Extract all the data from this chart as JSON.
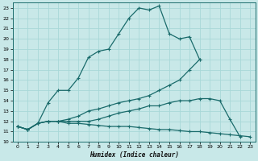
{
  "xlabel": "Humidex (Indice chaleur)",
  "bg_color": "#c8e8e8",
  "line_color": "#1a6b6b",
  "grid_color": "#a8d8d8",
  "xlim": [
    -0.5,
    23.5
  ],
  "ylim": [
    10,
    23.5
  ],
  "xticks": [
    0,
    1,
    2,
    3,
    4,
    5,
    6,
    7,
    8,
    9,
    10,
    11,
    12,
    13,
    14,
    15,
    16,
    17,
    18,
    19,
    20,
    21,
    22,
    23
  ],
  "yticks": [
    10,
    11,
    12,
    13,
    14,
    15,
    16,
    17,
    18,
    19,
    20,
    21,
    22,
    23
  ],
  "lines": [
    {
      "x": [
        0,
        1,
        2,
        3,
        4,
        5,
        6,
        7,
        8,
        9,
        10,
        11,
        12,
        13,
        14,
        15,
        16,
        17,
        18
      ],
      "y": [
        11.5,
        11.2,
        11.8,
        13.8,
        15.0,
        15.0,
        16.2,
        18.2,
        18.8,
        19.0,
        20.5,
        22.0,
        23.0,
        22.8,
        23.2,
        20.5,
        20.0,
        20.2,
        18.0
      ]
    },
    {
      "x": [
        0,
        1,
        2,
        3,
        4,
        5,
        6,
        7,
        8,
        9,
        10,
        11,
        12,
        13,
        14,
        15,
        16,
        17,
        18
      ],
      "y": [
        11.5,
        11.2,
        11.8,
        12.0,
        12.0,
        12.2,
        12.5,
        13.0,
        13.2,
        13.5,
        13.8,
        14.0,
        14.2,
        14.5,
        15.0,
        15.5,
        16.0,
        17.0,
        18.0
      ]
    },
    {
      "x": [
        0,
        1,
        2,
        3,
        4,
        5,
        6,
        7,
        8,
        9,
        10,
        11,
        12,
        13,
        14,
        15,
        16,
        17,
        18,
        19,
        20,
        21,
        22
      ],
      "y": [
        11.5,
        11.2,
        11.8,
        12.0,
        12.0,
        12.0,
        12.0,
        12.0,
        12.2,
        12.5,
        12.8,
        13.0,
        13.2,
        13.5,
        13.5,
        13.8,
        14.0,
        14.0,
        14.2,
        14.2,
        14.0,
        12.2,
        10.5
      ]
    },
    {
      "x": [
        0,
        1,
        2,
        3,
        4,
        5,
        6,
        7,
        8,
        9,
        10,
        11,
        12,
        13,
        14,
        15,
        16,
        17,
        18,
        19,
        20,
        21,
        22,
        23
      ],
      "y": [
        11.5,
        11.2,
        11.8,
        12.0,
        12.0,
        11.8,
        11.8,
        11.7,
        11.6,
        11.5,
        11.5,
        11.5,
        11.4,
        11.3,
        11.2,
        11.2,
        11.1,
        11.0,
        11.0,
        10.9,
        10.8,
        10.7,
        10.6,
        10.5
      ]
    }
  ]
}
